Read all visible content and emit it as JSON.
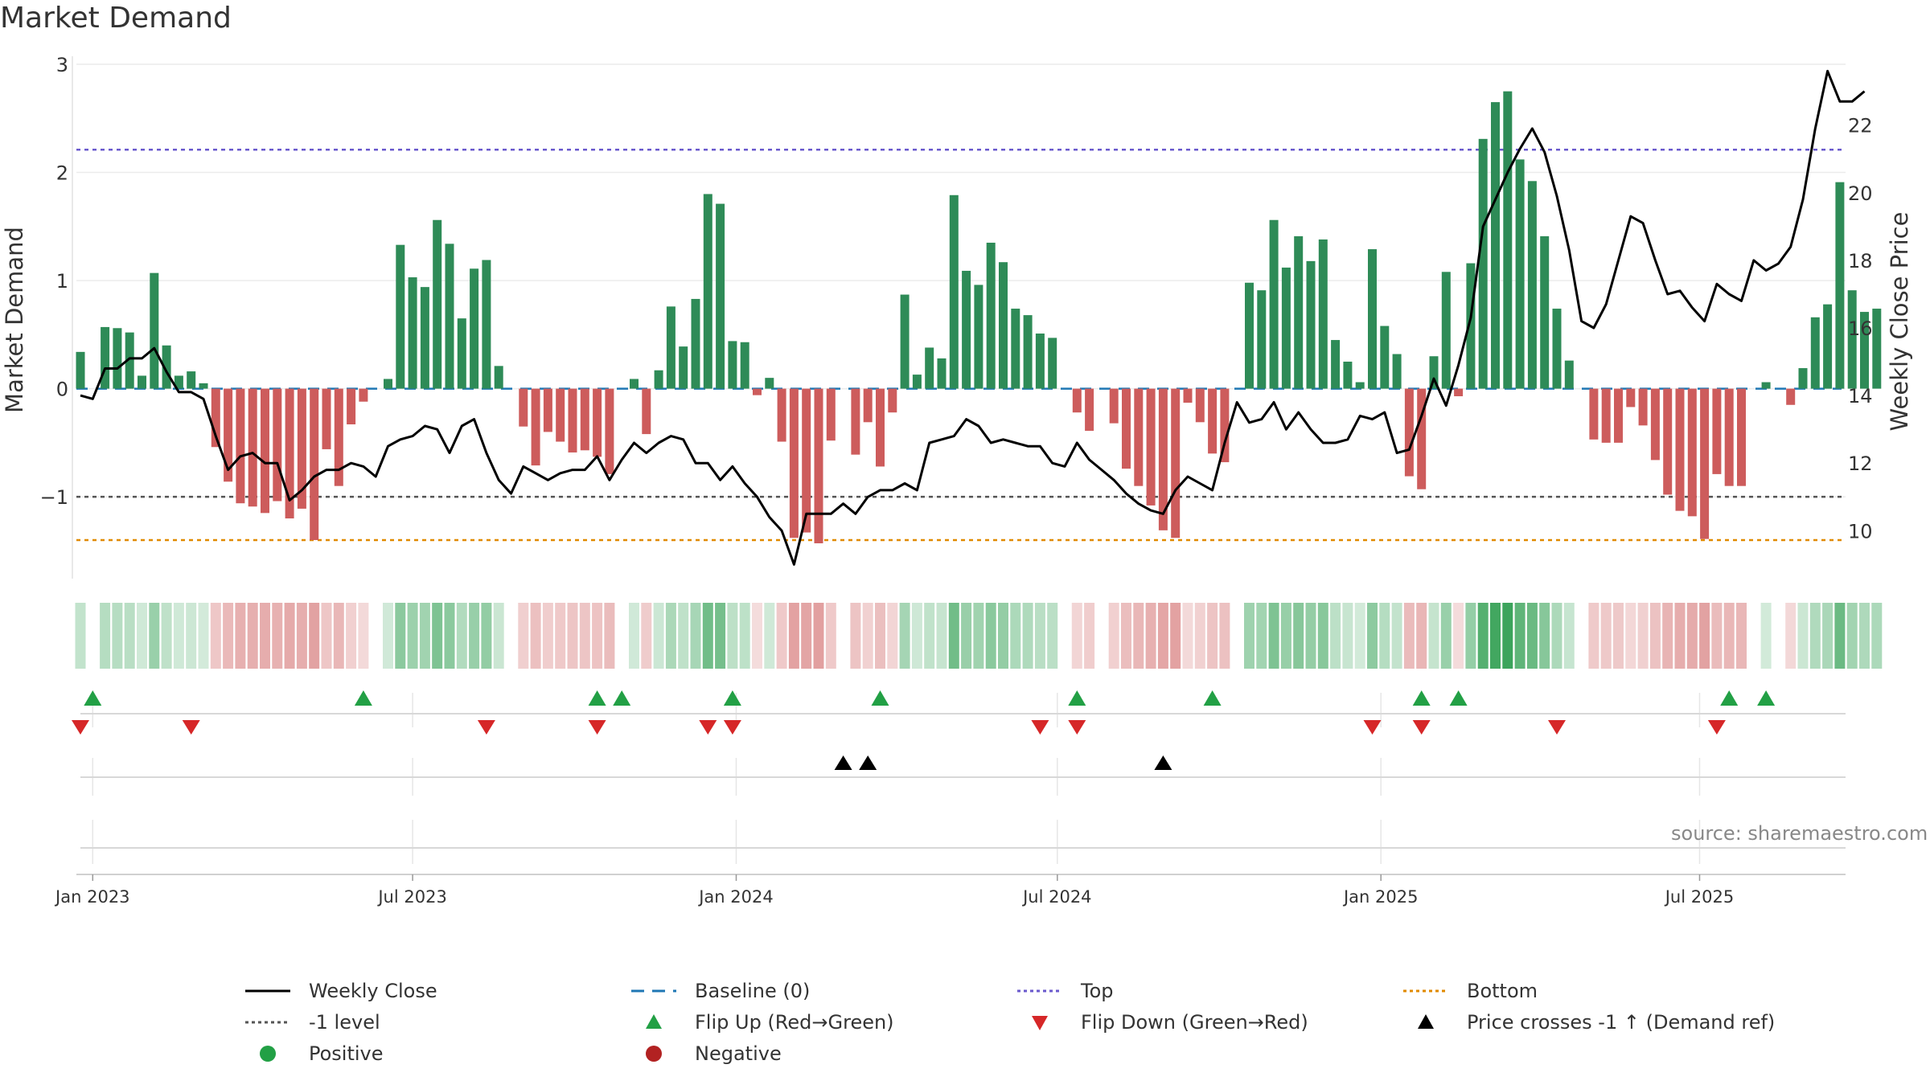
{
  "title": "Market Demand",
  "source": "source: sharemaestro.com",
  "colors": {
    "positive": "#2e8b57",
    "negative": "#cd5c5c",
    "top": "#6a5acd",
    "bottom": "#e08a00",
    "level": "#555555",
    "baseline": "#1f77b4",
    "flip_up": "#22a045",
    "flip_down": "#d62728",
    "price": "#000000"
  },
  "legend": {
    "weekly_close": "Weekly Close",
    "baseline": "Baseline (0)",
    "top": "Top",
    "bottom": "Bottom",
    "level": "-1 level",
    "flip_up": "Flip Up (Red→Green)",
    "flip_down": "Flip Down (Green→Red)",
    "price_cross": "Price crosses -1 ↑ (Demand ref)",
    "positive": "Positive",
    "negative": "Negative"
  },
  "chart_data": {
    "type": "bar",
    "title": "Market Demand",
    "ylabel": "Market Demand",
    "y2label": "Weekly Close Price",
    "ylim": [
      -1.72,
      3.0
    ],
    "y2lim": [
      8.7,
      23.8
    ],
    "yticks": [
      {
        "v": 3,
        "t": "3"
      },
      {
        "v": 2,
        "t": "2"
      },
      {
        "v": 1,
        "t": "1"
      },
      {
        "v": 0,
        "t": "0"
      },
      {
        "v": -1,
        "t": "−1"
      }
    ],
    "y2ticks": [
      {
        "v": 22,
        "t": "22"
      },
      {
        "v": 20,
        "t": "20"
      },
      {
        "v": 18,
        "t": "18"
      },
      {
        "v": 16,
        "t": "16"
      },
      {
        "v": 14,
        "t": "14"
      },
      {
        "v": 12,
        "t": "12"
      },
      {
        "v": 10,
        "t": "10"
      }
    ],
    "xticks": [
      {
        "i": 1,
        "t": "Jan 2023"
      },
      {
        "i": 27,
        "t": "Jul 2023"
      },
      {
        "i": 53.3,
        "t": "Jan 2024"
      },
      {
        "i": 79.4,
        "t": "Jul 2024"
      },
      {
        "i": 105.7,
        "t": "Jan 2025"
      },
      {
        "i": 131.6,
        "t": "Jul 2025"
      }
    ],
    "reference_lines": {
      "top": 2.21,
      "bottom": -1.4,
      "level": -1.0,
      "baseline": 0
    },
    "demand": [
      0.34,
      0.0,
      0.57,
      0.56,
      0.52,
      0.12,
      1.07,
      0.4,
      0.12,
      0.16,
      0.05,
      -0.54,
      -0.86,
      -1.06,
      -1.09,
      -1.15,
      -1.04,
      -1.2,
      -1.11,
      -1.4,
      -0.56,
      -0.9,
      -0.33,
      -0.12,
      0.0,
      0.09,
      1.33,
      1.03,
      0.94,
      1.56,
      1.34,
      0.65,
      1.11,
      1.19,
      0.21,
      0.0,
      -0.35,
      -0.71,
      -0.4,
      -0.49,
      -0.59,
      -0.57,
      -0.63,
      -0.79,
      0.0,
      0.09,
      -0.42,
      0.17,
      0.76,
      0.39,
      0.83,
      1.8,
      1.71,
      0.44,
      0.43,
      -0.06,
      0.1,
      -0.49,
      -1.38,
      -1.33,
      -1.43,
      -0.48,
      0.0,
      -0.61,
      -0.31,
      -0.72,
      -0.22,
      0.87,
      0.13,
      0.38,
      0.28,
      1.79,
      1.09,
      0.96,
      1.35,
      1.17,
      0.74,
      0.68,
      0.51,
      0.47,
      0.0,
      -0.22,
      -0.39,
      0.0,
      -0.32,
      -0.74,
      -0.9,
      -1.08,
      -1.31,
      -1.38,
      -0.13,
      -0.31,
      -0.6,
      -0.68,
      0.0,
      0.98,
      0.91,
      1.56,
      1.12,
      1.41,
      1.18,
      1.38,
      0.45,
      0.25,
      0.06,
      1.29,
      0.58,
      0.32,
      -0.81,
      -0.93,
      0.3,
      1.08,
      -0.07,
      1.16,
      2.31,
      2.65,
      2.75,
      2.12,
      1.92,
      1.41,
      0.74,
      0.26,
      0.0,
      -0.47,
      -0.5,
      -0.5,
      -0.17,
      -0.34,
      -0.66,
      -0.98,
      -1.13,
      -1.18,
      -1.39,
      -0.79,
      -0.9,
      -0.9,
      0.0,
      0.06,
      0.0,
      -0.15,
      0.19,
      0.66,
      0.78,
      1.91,
      0.91,
      0.71,
      0.74
    ],
    "price": [
      14.0,
      13.9,
      14.8,
      14.8,
      15.1,
      15.1,
      15.4,
      14.7,
      14.1,
      14.1,
      13.9,
      12.8,
      11.8,
      12.2,
      12.3,
      12.0,
      12.0,
      10.9,
      11.2,
      11.6,
      11.8,
      11.8,
      12.0,
      11.9,
      11.6,
      12.5,
      12.7,
      12.8,
      13.1,
      13.0,
      12.3,
      13.1,
      13.3,
      12.3,
      11.5,
      11.1,
      11.9,
      11.7,
      11.5,
      11.7,
      11.8,
      11.8,
      12.2,
      11.5,
      12.1,
      12.6,
      12.3,
      12.6,
      12.8,
      12.7,
      12.0,
      12.0,
      11.5,
      11.9,
      11.4,
      11.0,
      10.4,
      10.0,
      9.0,
      10.5,
      10.5,
      10.5,
      10.8,
      10.5,
      11.0,
      11.2,
      11.2,
      11.4,
      11.2,
      12.6,
      12.7,
      12.8,
      13.3,
      13.1,
      12.6,
      12.7,
      12.6,
      12.5,
      12.5,
      12.0,
      11.9,
      12.6,
      12.1,
      11.8,
      11.5,
      11.1,
      10.8,
      10.6,
      10.5,
      11.2,
      11.6,
      11.4,
      11.2,
      12.6,
      13.8,
      13.2,
      13.3,
      13.8,
      13.0,
      13.5,
      13.0,
      12.6,
      12.6,
      12.7,
      13.4,
      13.3,
      13.5,
      12.3,
      12.4,
      13.4,
      14.5,
      13.7,
      14.9,
      16.3,
      19.0,
      19.8,
      20.6,
      21.3,
      21.9,
      21.2,
      19.9,
      18.3,
      16.2,
      16.0,
      16.7,
      18.0,
      19.3,
      19.1,
      18.0,
      17.0,
      17.1,
      16.6,
      16.2,
      17.3,
      17.0,
      16.8,
      18.0,
      17.7,
      17.9,
      18.4,
      19.8,
      21.9,
      23.6,
      22.7,
      22.7,
      23.0
    ],
    "flip_up": [
      1,
      23,
      42,
      44,
      53,
      65,
      81,
      92,
      109,
      112,
      134,
      137
    ],
    "flip_down": [
      0,
      9,
      33,
      42,
      51,
      53,
      78,
      81,
      105,
      109,
      120,
      133
    ],
    "price_cross": [
      62,
      64,
      88
    ]
  }
}
